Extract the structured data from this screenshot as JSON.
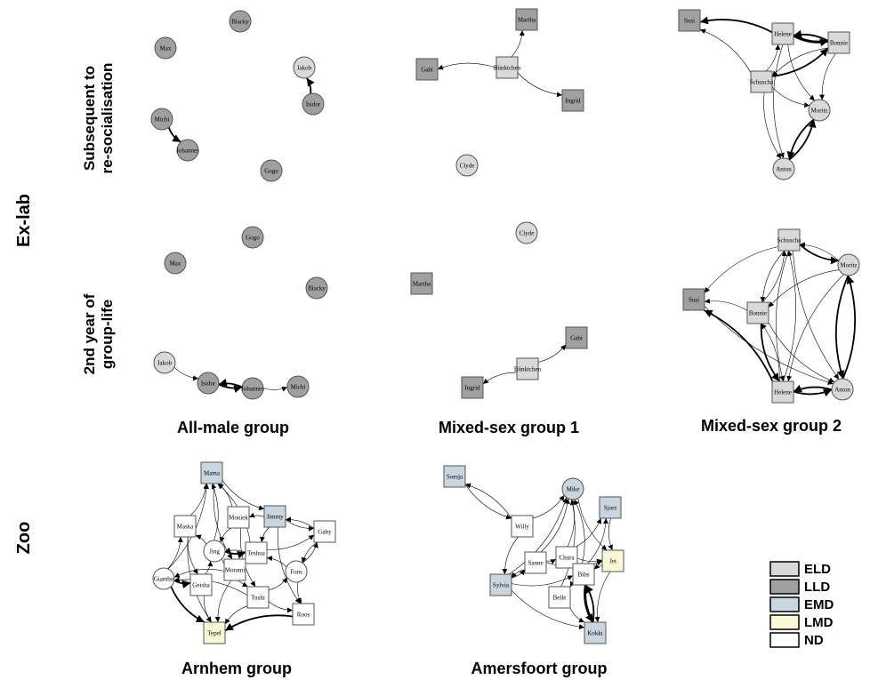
{
  "row_labels": {
    "exlab": "Ex-lab",
    "zoo": "Zoo"
  },
  "sub_labels": {
    "subsequent": [
      "Subsequent to",
      "re-socialisation"
    ],
    "second_year": [
      "2nd year of",
      "group-life"
    ]
  },
  "group_labels": {
    "all_male": "All-male group",
    "mixed1": "Mixed-sex group 1",
    "mixed2": "Mixed-sex group 2",
    "arnhem": "Arnhem group",
    "amersfoort": "Amersfoort group"
  },
  "legend": [
    {
      "label": "ELD",
      "color": "#d9d9d9"
    },
    {
      "label": "LLD",
      "color": "#a0a0a0"
    },
    {
      "label": "EMD",
      "color": "#c9d6df"
    },
    {
      "label": "LMD",
      "color": "#fbf8d6"
    },
    {
      "label": "ND",
      "color": "#ffffff"
    }
  ],
  "networks": [
    {
      "id": "allmale-a",
      "nodes": [
        {
          "name": "Blacky",
          "shape": "circle",
          "cls": "LLD"
        },
        {
          "name": "Max",
          "shape": "circle",
          "cls": "LLD"
        },
        {
          "name": "Jakob",
          "shape": "circle",
          "cls": "ELD"
        },
        {
          "name": "Isidor",
          "shape": "circle",
          "cls": "LLD"
        },
        {
          "name": "Michi",
          "shape": "circle",
          "cls": "LLD"
        },
        {
          "name": "Johannes",
          "shape": "circle",
          "cls": "LLD"
        },
        {
          "name": "Gogo",
          "shape": "circle",
          "cls": "LLD"
        }
      ],
      "edges": [
        {
          "from": "Isidor",
          "to": "Jakob",
          "w": 2
        },
        {
          "from": "Michi",
          "to": "Johannes",
          "w": 2
        }
      ]
    },
    {
      "id": "allmale-b",
      "nodes": [
        {
          "name": "Gogo",
          "shape": "circle",
          "cls": "LLD"
        },
        {
          "name": "Max",
          "shape": "circle",
          "cls": "LLD"
        },
        {
          "name": "Blacky",
          "shape": "circle",
          "cls": "LLD"
        },
        {
          "name": "Jakob",
          "shape": "circle",
          "cls": "ELD"
        },
        {
          "name": "Isidor",
          "shape": "circle",
          "cls": "LLD"
        },
        {
          "name": "Johannes",
          "shape": "circle",
          "cls": "LLD"
        },
        {
          "name": "Michi",
          "shape": "circle",
          "cls": "LLD"
        }
      ],
      "edges": [
        {
          "from": "Jakob",
          "to": "Isidor",
          "w": 1
        },
        {
          "from": "Isidor",
          "to": "Johannes",
          "w": 2
        },
        {
          "from": "Johannes",
          "to": "Isidor",
          "w": 2
        },
        {
          "from": "Johannes",
          "to": "Michi",
          "w": 1
        }
      ]
    },
    {
      "id": "mixed1-a",
      "nodes": [
        {
          "name": "Martha",
          "shape": "square",
          "cls": "LLD"
        },
        {
          "name": "Gabi",
          "shape": "square",
          "cls": "LLD"
        },
        {
          "name": "Bünktchen",
          "shape": "square",
          "cls": "ELD"
        },
        {
          "name": "Ingrid",
          "shape": "square",
          "cls": "LLD"
        },
        {
          "name": "Clyde",
          "shape": "circle",
          "cls": "ELD"
        }
      ],
      "edges": [
        {
          "from": "Bünktchen",
          "to": "Martha",
          "w": 1
        },
        {
          "from": "Bünktchen",
          "to": "Gabi",
          "w": 1
        },
        {
          "from": "Bünktchen",
          "to": "Ingrid",
          "w": 1
        }
      ]
    },
    {
      "id": "mixed1-b",
      "nodes": [
        {
          "name": "Clyde",
          "shape": "circle",
          "cls": "ELD"
        },
        {
          "name": "Martha",
          "shape": "square",
          "cls": "LLD"
        },
        {
          "name": "Gabi",
          "shape": "square",
          "cls": "LLD"
        },
        {
          "name": "Bünktchen",
          "shape": "square",
          "cls": "ELD"
        },
        {
          "name": "Ingrid",
          "shape": "square",
          "cls": "LLD"
        }
      ],
      "edges": [
        {
          "from": "Bünktchen",
          "to": "Gabi",
          "w": 1
        },
        {
          "from": "Bünktchen",
          "to": "Ingrid",
          "w": 1
        }
      ]
    },
    {
      "id": "mixed2-a",
      "nodes": [
        {
          "name": "Susi",
          "shape": "square",
          "cls": "LLD"
        },
        {
          "name": "Helene",
          "shape": "square",
          "cls": "ELD"
        },
        {
          "name": "Bonnie",
          "shape": "square",
          "cls": "ELD"
        },
        {
          "name": "Schuscha",
          "shape": "square",
          "cls": "ELD"
        },
        {
          "name": "Moritz",
          "shape": "circle",
          "cls": "ELD"
        },
        {
          "name": "Anton",
          "shape": "circle",
          "cls": "ELD"
        }
      ],
      "edges": [
        {
          "from": "Helene",
          "to": "Susi",
          "w": 2
        },
        {
          "from": "Helene",
          "to": "Bonnie",
          "w": 3
        },
        {
          "from": "Bonnie",
          "to": "Helene",
          "w": 2
        },
        {
          "from": "Schuscha",
          "to": "Susi",
          "w": 1
        },
        {
          "from": "Schuscha",
          "to": "Helene",
          "w": 1
        },
        {
          "from": "Schuscha",
          "to": "Bonnie",
          "w": 2
        },
        {
          "from": "Bonnie",
          "to": "Schuscha",
          "w": 1
        },
        {
          "from": "Helene",
          "to": "Moritz",
          "w": 1
        },
        {
          "from": "Bonnie",
          "to": "Moritz",
          "w": 1
        },
        {
          "from": "Schuscha",
          "to": "Moritz",
          "w": 1
        },
        {
          "from": "Moritz",
          "to": "Anton",
          "w": 2
        },
        {
          "from": "Anton",
          "to": "Moritz",
          "w": 2
        },
        {
          "from": "Schuscha",
          "to": "Anton",
          "w": 1
        },
        {
          "from": "Helene",
          "to": "Anton",
          "w": 1
        }
      ]
    },
    {
      "id": "mixed2-b",
      "nodes": [
        {
          "name": "Schuscha",
          "shape": "square",
          "cls": "ELD"
        },
        {
          "name": "Moritz",
          "shape": "circle",
          "cls": "ELD"
        },
        {
          "name": "Susi",
          "shape": "square",
          "cls": "LLD"
        },
        {
          "name": "Bonnie",
          "shape": "square",
          "cls": "ELD"
        },
        {
          "name": "Helene",
          "shape": "square",
          "cls": "ELD"
        },
        {
          "name": "Anton",
          "shape": "circle",
          "cls": "ELD"
        }
      ],
      "edges": [
        {
          "from": "Schuscha",
          "to": "Moritz",
          "w": 2
        },
        {
          "from": "Moritz",
          "to": "Schuscha",
          "w": 1
        },
        {
          "from": "Schuscha",
          "to": "Susi",
          "w": 1
        },
        {
          "from": "Schuscha",
          "to": "Bonnie",
          "w": 1
        },
        {
          "from": "Bonnie",
          "to": "Schuscha",
          "w": 1
        },
        {
          "from": "Schuscha",
          "to": "Helene",
          "w": 1
        },
        {
          "from": "Helene",
          "to": "Schuscha",
          "w": 1
        },
        {
          "from": "Schuscha",
          "to": "Anton",
          "w": 1
        },
        {
          "from": "Moritz",
          "to": "Anton",
          "w": 2
        },
        {
          "from": "Anton",
          "to": "Moritz",
          "w": 2
        },
        {
          "from": "Moritz",
          "to": "Helene",
          "w": 1
        },
        {
          "from": "Moritz",
          "to": "Bonnie",
          "w": 1
        },
        {
          "from": "Bonnie",
          "to": "Susi",
          "w": 1
        },
        {
          "from": "Helene",
          "to": "Susi",
          "w": 2
        },
        {
          "from": "Bonnie",
          "to": "Helene",
          "w": 2
        },
        {
          "from": "Helene",
          "to": "Bonnie",
          "w": 1
        },
        {
          "from": "Helene",
          "to": "Anton",
          "w": 2
        },
        {
          "from": "Anton",
          "to": "Helene",
          "w": 2
        },
        {
          "from": "Susi",
          "to": "Anton",
          "w": 1
        },
        {
          "from": "Bonnie",
          "to": "Anton",
          "w": 1
        }
      ]
    },
    {
      "id": "arnhem",
      "nodes": [
        {
          "name": "Mama",
          "shape": "square",
          "cls": "EMD"
        },
        {
          "name": "Moniek",
          "shape": "square",
          "cls": "ND"
        },
        {
          "name": "Jimmy",
          "shape": "square",
          "cls": "EMD"
        },
        {
          "name": "Maska",
          "shape": "square",
          "cls": "ND"
        },
        {
          "name": "Gaby",
          "shape": "square",
          "cls": "ND"
        },
        {
          "name": "Jing",
          "shape": "circle",
          "cls": "ND"
        },
        {
          "name": "Teshua",
          "shape": "square",
          "cls": "ND"
        },
        {
          "name": "Morami",
          "shape": "square",
          "cls": "ND"
        },
        {
          "name": "Fons",
          "shape": "circle",
          "cls": "ND"
        },
        {
          "name": "Giambo",
          "shape": "circle",
          "cls": "ND"
        },
        {
          "name": "Geisha",
          "shape": "square",
          "cls": "ND"
        },
        {
          "name": "Tushi",
          "shape": "square",
          "cls": "ND"
        },
        {
          "name": "Roos",
          "shape": "square",
          "cls": "ND"
        },
        {
          "name": "Tepel",
          "shape": "square",
          "cls": "LMD"
        }
      ],
      "edges": [
        {
          "from": "Maska",
          "to": "Mama",
          "w": 1
        },
        {
          "from": "Moniek",
          "to": "Mama",
          "w": 1
        },
        {
          "from": "Jing",
          "to": "Mama",
          "w": 1
        },
        {
          "from": "Teshua",
          "to": "Mama",
          "w": 1
        },
        {
          "from": "Giambo",
          "to": "Mama",
          "w": 1
        },
        {
          "from": "Mama",
          "to": "Morami",
          "w": 1
        },
        {
          "from": "Jimmy",
          "to": "Moniek",
          "w": 1
        },
        {
          "from": "Jimmy",
          "to": "Gaby",
          "w": 1
        },
        {
          "from": "Gaby",
          "to": "Jimmy",
          "w": 1
        },
        {
          "from": "Fons",
          "to": "Gaby",
          "w": 1
        },
        {
          "from": "Teshua",
          "to": "Gaby",
          "w": 1
        },
        {
          "from": "Jing",
          "to": "Maska",
          "w": 1
        },
        {
          "from": "Giambo",
          "to": "Maska",
          "w": 1
        },
        {
          "from": "Jing",
          "to": "Teshua",
          "w": 2
        },
        {
          "from": "Teshua",
          "to": "Jing",
          "w": 1
        },
        {
          "from": "Morami",
          "to": "Teshua",
          "w": 1
        },
        {
          "from": "Geisha",
          "to": "Jing",
          "w": 1
        },
        {
          "from": "Fons",
          "to": "Teshua",
          "w": 1
        },
        {
          "from": "Tushi",
          "to": "Fons",
          "w": 1
        },
        {
          "from": "Giambo",
          "to": "Geisha",
          "w": 2
        },
        {
          "from": "Geisha",
          "to": "Giambo",
          "w": 1
        },
        {
          "from": "Morami",
          "to": "Giambo",
          "w": 1
        },
        {
          "from": "Tushi",
          "to": "Giambo",
          "w": 1
        },
        {
          "from": "Giambo",
          "to": "Tepel",
          "w": 2
        },
        {
          "from": "Roos",
          "to": "Tepel",
          "w": 2
        },
        {
          "from": "Tushi",
          "to": "Tepel",
          "w": 1
        },
        {
          "from": "Geisha",
          "to": "Tepel",
          "w": 1
        },
        {
          "from": "Morami",
          "to": "Tepel",
          "w": 1
        },
        {
          "from": "Tushi",
          "to": "Roos",
          "w": 1
        },
        {
          "from": "Fons",
          "to": "Roos",
          "w": 1
        },
        {
          "from": "Jimmy",
          "to": "Roos",
          "w": 1
        },
        {
          "from": "Moniek",
          "to": "Tushi",
          "w": 1
        },
        {
          "from": "Jimmy",
          "to": "Teshua",
          "w": 1
        },
        {
          "from": "Maska",
          "to": "Geisha",
          "w": 1
        },
        {
          "from": "Teshua",
          "to": "Morami",
          "w": 1
        },
        {
          "from": "Gaby",
          "to": "Fons",
          "w": 1
        },
        {
          "from": "Mama",
          "to": "Jimmy",
          "w": 1
        },
        {
          "from": "Moniek",
          "to": "Jing",
          "w": 1
        },
        {
          "from": "Maska",
          "to": "Tepel",
          "w": 1
        },
        {
          "from": "Jing",
          "to": "Tushi",
          "w": 1
        }
      ]
    },
    {
      "id": "amersfoort",
      "nodes": [
        {
          "name": "Soesja",
          "shape": "square",
          "cls": "EMD"
        },
        {
          "name": "Mike",
          "shape": "circle",
          "cls": "EMD"
        },
        {
          "name": "Sjors",
          "shape": "square",
          "cls": "EMD"
        },
        {
          "name": "Willy",
          "shape": "square",
          "cls": "ND"
        },
        {
          "name": "Sanne",
          "shape": "square",
          "cls": "ND"
        },
        {
          "name": "Chura",
          "shape": "square",
          "cls": "ND"
        },
        {
          "name": "Jet",
          "shape": "square",
          "cls": "LMD"
        },
        {
          "name": "Bibs",
          "shape": "square",
          "cls": "ND"
        },
        {
          "name": "Sylvia",
          "shape": "square",
          "cls": "EMD"
        },
        {
          "name": "Belle",
          "shape": "square",
          "cls": "ND"
        },
        {
          "name": "Kokki",
          "shape": "square",
          "cls": "EMD"
        }
      ],
      "edges": [
        {
          "from": "Willy",
          "to": "Soesja",
          "w": 1
        },
        {
          "from": "Soesja",
          "to": "Willy",
          "w": 1
        },
        {
          "from": "Willy",
          "to": "Mike",
          "w": 1
        },
        {
          "from": "Sanne",
          "to": "Mike",
          "w": 1
        },
        {
          "from": "Chura",
          "to": "Mike",
          "w": 1
        },
        {
          "from": "Bibs",
          "to": "Mike",
          "w": 1
        },
        {
          "from": "Belle",
          "to": "Mike",
          "w": 1
        },
        {
          "from": "Sylvia",
          "to": "Mike",
          "w": 1
        },
        {
          "from": "Chura",
          "to": "Sjors",
          "w": 1
        },
        {
          "from": "Bibs",
          "to": "Sjors",
          "w": 1
        },
        {
          "from": "Sjors",
          "to": "Jet",
          "w": 1
        },
        {
          "from": "Mike",
          "to": "Jet",
          "w": 1
        },
        {
          "from": "Willy",
          "to": "Sylvia",
          "w": 1
        },
        {
          "from": "Sanne",
          "to": "Sylvia",
          "w": 1
        },
        {
          "from": "Sylvia",
          "to": "Sanne",
          "w": 1
        },
        {
          "from": "Sanne",
          "to": "Chura",
          "w": 1
        },
        {
          "from": "Chura",
          "to": "Bibs",
          "w": 1
        },
        {
          "from": "Bibs",
          "to": "Belle",
          "w": 1
        },
        {
          "from": "Bibs",
          "to": "Kokki",
          "w": 3
        },
        {
          "from": "Kokki",
          "to": "Bibs",
          "w": 2
        },
        {
          "from": "Belle",
          "to": "Kokki",
          "w": 1
        },
        {
          "from": "Jet",
          "to": "Bibs",
          "w": 1
        },
        {
          "from": "Sylvia",
          "to": "Bibs",
          "w": 1
        },
        {
          "from": "Sylvia",
          "to": "Kokki",
          "w": 1
        },
        {
          "from": "Jet",
          "to": "Kokki",
          "w": 1
        },
        {
          "from": "Chura",
          "to": "Jet",
          "w": 1
        },
        {
          "from": "Sanne",
          "to": "Jet",
          "w": 1
        }
      ]
    }
  ]
}
